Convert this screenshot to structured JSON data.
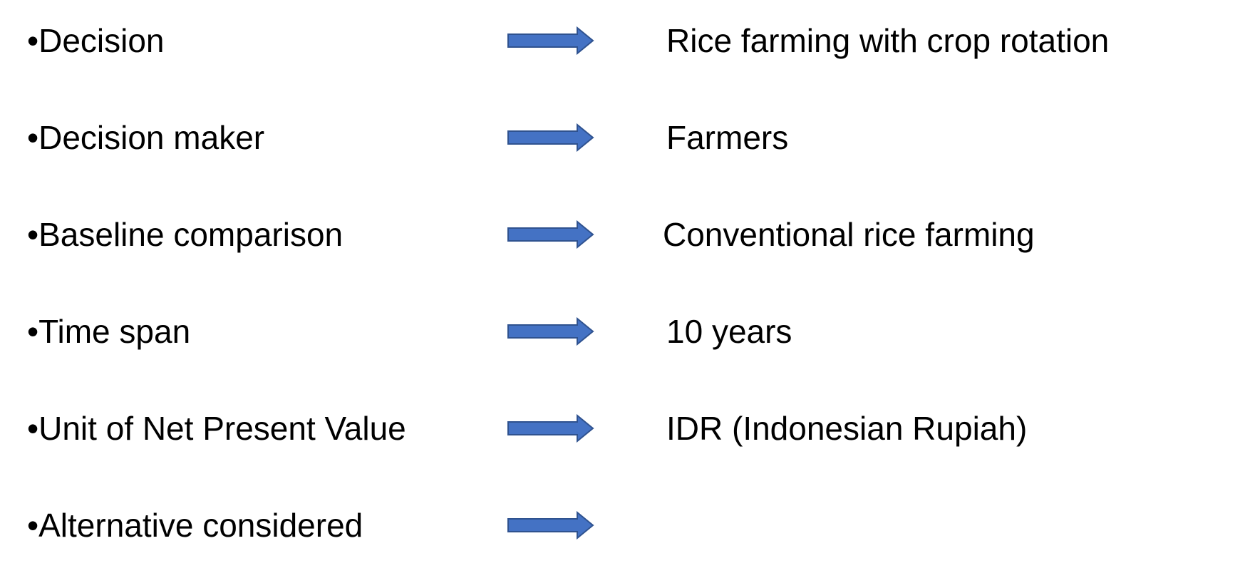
{
  "rows": [
    {
      "label": "•Decision",
      "value": "Rice farming with crop rotation"
    },
    {
      "label": "•Decision maker",
      "value": "Farmers"
    },
    {
      "label": "•Baseline comparison",
      "value": "Conventional rice farming"
    },
    {
      "label": "•Time span",
      "value": "10 years"
    },
    {
      "label": "•Unit of Net Present Value",
      "value": "IDR (Indonesian Rupiah)"
    },
    {
      "label": "•Alternative considered",
      "value": ""
    }
  ],
  "colors": {
    "arrow_fill": "#4472C4",
    "arrow_stroke": "#2F528F",
    "text": "#000000",
    "background": "#FFFFFF"
  }
}
